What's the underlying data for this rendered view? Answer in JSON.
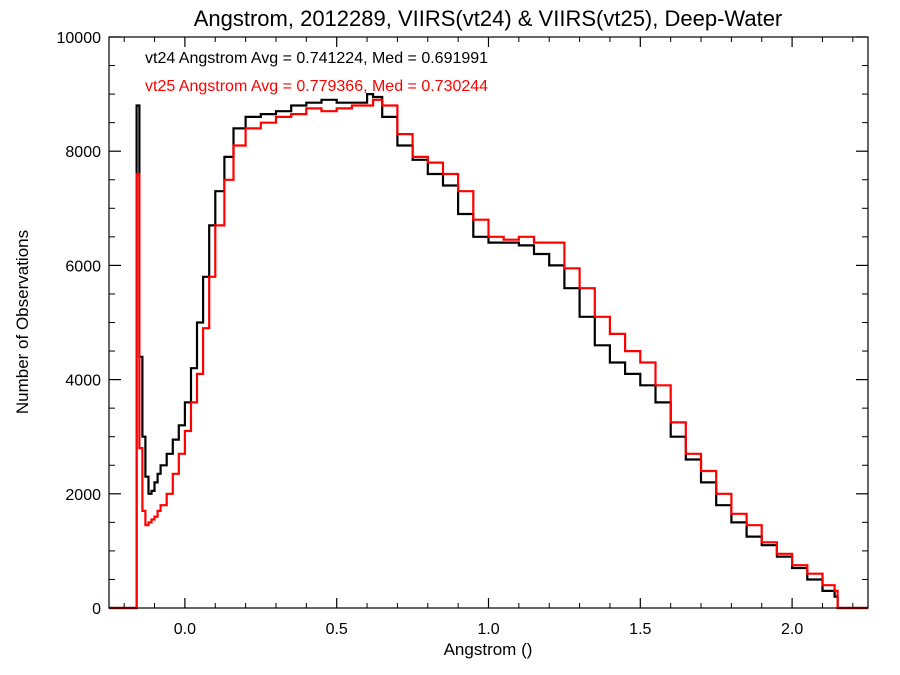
{
  "chart_data": {
    "type": "line",
    "title": "Angstrom, 2012289, VIIRS(vt24) & VIIRS(vt25), Deep-Water",
    "xlabel": "Angstrom ()",
    "ylabel": "Number of Observations",
    "xlim": [
      -0.25,
      2.25
    ],
    "ylim": [
      0,
      10000
    ],
    "xticks": [
      0.0,
      0.5,
      1.0,
      1.5,
      2.0
    ],
    "xtick_labels": [
      "0.0",
      "0.5",
      "1.0",
      "1.5",
      "2.0"
    ],
    "yticks": [
      0,
      2000,
      4000,
      6000,
      8000,
      10000
    ],
    "ytick_labels": [
      "0",
      "2000",
      "4000",
      "6000",
      "8000",
      "10000"
    ],
    "grid": false,
    "annotations": [
      {
        "text": "vt24 Angstrom Avg = 0.741224, Med = 0.691991",
        "color": "#000000"
      },
      {
        "text": "vt25 Angstrom Avg = 0.779366, Med = 0.730244",
        "color": "#ff0000"
      }
    ],
    "series": [
      {
        "color": "#000000",
        "x": [
          -0.25,
          -0.16,
          -0.159,
          -0.15,
          -0.14,
          -0.13,
          -0.12,
          -0.11,
          -0.1,
          -0.09,
          -0.08,
          -0.06,
          -0.04,
          -0.02,
          0.0,
          0.02,
          0.04,
          0.06,
          0.08,
          0.1,
          0.13,
          0.16,
          0.2,
          0.25,
          0.3,
          0.35,
          0.4,
          0.45,
          0.5,
          0.55,
          0.6,
          0.62,
          0.65,
          0.7,
          0.75,
          0.8,
          0.85,
          0.9,
          0.95,
          1.0,
          1.05,
          1.1,
          1.15,
          1.2,
          1.25,
          1.3,
          1.35,
          1.4,
          1.45,
          1.5,
          1.55,
          1.6,
          1.65,
          1.7,
          1.75,
          1.8,
          1.85,
          1.9,
          1.95,
          2.0,
          2.05,
          2.1,
          2.14,
          2.15,
          2.25
        ],
        "y": [
          0,
          0,
          8800,
          4400,
          3000,
          2300,
          2000,
          2050,
          2200,
          2350,
          2500,
          2700,
          2950,
          3200,
          3600,
          4200,
          5000,
          5800,
          6700,
          7300,
          7900,
          8400,
          8600,
          8650,
          8700,
          8800,
          8850,
          8900,
          8850,
          8850,
          9000,
          8950,
          8600,
          8100,
          7850,
          7600,
          7400,
          6900,
          6500,
          6400,
          6400,
          6350,
          6200,
          6000,
          5600,
          5100,
          4600,
          4300,
          4100,
          3900,
          3600,
          3000,
          2600,
          2200,
          1800,
          1500,
          1250,
          1100,
          900,
          700,
          500,
          300,
          200,
          0,
          0
        ]
      },
      {
        "color": "#ff0000",
        "x": [
          -0.25,
          -0.16,
          -0.159,
          -0.15,
          -0.14,
          -0.13,
          -0.12,
          -0.11,
          -0.1,
          -0.09,
          -0.08,
          -0.06,
          -0.04,
          -0.02,
          0.0,
          0.02,
          0.04,
          0.06,
          0.08,
          0.1,
          0.13,
          0.16,
          0.2,
          0.25,
          0.3,
          0.35,
          0.4,
          0.45,
          0.5,
          0.55,
          0.6,
          0.62,
          0.65,
          0.7,
          0.75,
          0.8,
          0.85,
          0.9,
          0.95,
          1.0,
          1.05,
          1.1,
          1.15,
          1.2,
          1.25,
          1.3,
          1.35,
          1.4,
          1.45,
          1.5,
          1.55,
          1.6,
          1.65,
          1.7,
          1.75,
          1.8,
          1.85,
          1.9,
          1.95,
          2.0,
          2.05,
          2.1,
          2.14,
          2.15,
          2.25
        ],
        "y": [
          0,
          0,
          7600,
          2800,
          1700,
          1450,
          1500,
          1550,
          1600,
          1700,
          1800,
          2000,
          2350,
          2700,
          3100,
          3600,
          4100,
          4900,
          5800,
          6700,
          7500,
          8100,
          8400,
          8500,
          8600,
          8650,
          8750,
          8700,
          8750,
          8800,
          8800,
          8900,
          8800,
          8300,
          7900,
          7800,
          7600,
          7300,
          6800,
          6500,
          6450,
          6500,
          6400,
          6400,
          5950,
          5600,
          5100,
          4800,
          4500,
          4300,
          3900,
          3250,
          2700,
          2400,
          2000,
          1650,
          1450,
          1150,
          950,
          750,
          600,
          400,
          300,
          0,
          0
        ]
      }
    ]
  }
}
